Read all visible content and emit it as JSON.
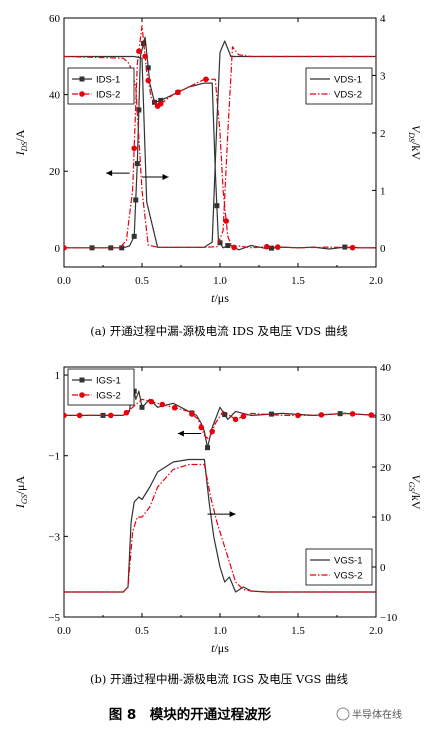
{
  "figure": {
    "title": "图 8　模块的开通过程波形",
    "watermark": "半导体在线",
    "caption_a": "(a)  开通过程中漏-源极电流  IDS 及电压  VDS 曲线",
    "caption_b": "(b)  开通过程中栅-源极电流  IGS 及电压  VGS  曲线"
  },
  "chart_data": [
    {
      "type": "line",
      "panel": "a",
      "xlabel": "t/μs",
      "ylabel_left": "IDS/A",
      "ylabel_right": "VDS/kV",
      "xlim": [
        0,
        2.0
      ],
      "ylim_left": [
        -5,
        60
      ],
      "ylim_right": [
        -0.333,
        4.0
      ],
      "xticks": [
        "0.0",
        "0.5",
        "1.0",
        "1.5",
        "2.0"
      ],
      "yticks_left": [
        "0",
        "20",
        "40",
        "60"
      ],
      "yticks_right": [
        "0",
        "1",
        "2",
        "3",
        "4"
      ],
      "legend_left": [
        "IDS-1",
        "IDS-2"
      ],
      "legend_right": [
        "VDS-1",
        "VDS-2"
      ],
      "colors": {
        "s1": "#333333",
        "s2": "#e8000b"
      },
      "series": [
        {
          "name": "IDS-1",
          "axis": "left",
          "style": "solid-square",
          "x": [
            0.0,
            0.2,
            0.38,
            0.42,
            0.45,
            0.47,
            0.49,
            0.52,
            0.55,
            0.58,
            0.62,
            0.7,
            0.8,
            0.9,
            0.95,
            0.97,
            0.99,
            1.02,
            1.06,
            1.12,
            1.2,
            1.3,
            1.4,
            1.5,
            1.6,
            1.7,
            1.8,
            1.9,
            2.0
          ],
          "y": [
            0,
            0,
            0,
            0.5,
            3,
            22,
            50,
            55,
            43,
            38,
            38.5,
            40,
            42,
            43,
            43,
            20,
            2,
            0,
            0.8,
            -0.5,
            0.6,
            -0.2,
            0.2,
            0,
            0.2,
            -0.3,
            0.2,
            0,
            0
          ],
          "markers_x": [
            0.18,
            0.3,
            0.37,
            0.45,
            0.46,
            0.47,
            0.48,
            0.51,
            0.54,
            0.58,
            0.62,
            0.73,
            0.98,
            1.0,
            1.05,
            1.33,
            1.8
          ]
        },
        {
          "name": "IDS-2",
          "axis": "left",
          "style": "dashdot-circle",
          "x": [
            0.0,
            0.2,
            0.36,
            0.4,
            0.44,
            0.47,
            0.5,
            0.53,
            0.56,
            0.6,
            0.7,
            0.8,
            0.9,
            0.97,
            1.0,
            1.02,
            1.05,
            1.08,
            1.12,
            1.2,
            1.3,
            1.5,
            1.7,
            1.9,
            2.0
          ],
          "y": [
            0,
            0,
            0,
            2,
            15,
            48,
            58,
            46,
            39,
            37,
            40,
            42,
            44,
            44,
            30,
            15,
            3,
            0,
            0.5,
            0,
            0.3,
            0,
            0.2,
            0,
            0
          ],
          "markers_x": [
            0.0,
            0.45,
            0.48,
            0.52,
            0.54,
            0.6,
            0.62,
            0.73,
            0.91,
            1.04,
            1.09,
            1.3,
            1.37,
            1.85
          ]
        },
        {
          "name": "VDS-1",
          "axis": "right",
          "style": "solid",
          "x": [
            0.0,
            0.38,
            0.45,
            0.5,
            0.53,
            0.6,
            0.9,
            0.95,
            0.98,
            1.0,
            1.03,
            1.07,
            1.2,
            1.5,
            2.0
          ],
          "y": [
            3.33,
            3.33,
            3.33,
            3.3,
            0.8,
            0.01,
            0.01,
            0.1,
            2.2,
            3.4,
            3.6,
            3.33,
            3.33,
            3.33,
            3.33
          ]
        },
        {
          "name": "VDS-2",
          "axis": "right",
          "style": "dashdot",
          "x": [
            0.0,
            0.38,
            0.42,
            0.46,
            0.5,
            0.54,
            0.6,
            0.9,
            0.98,
            1.02,
            1.05,
            1.08,
            1.12,
            1.2,
            1.5,
            2.0
          ],
          "y": [
            3.33,
            3.3,
            3.2,
            2.8,
            1.0,
            0.05,
            0.01,
            0.01,
            0.02,
            0.3,
            2.0,
            3.5,
            3.36,
            3.33,
            3.33,
            3.33
          ]
        }
      ]
    },
    {
      "type": "line",
      "panel": "b",
      "xlabel": "t/μs",
      "ylabel_left": "IGS/μA",
      "ylabel_right": "VGS/kV",
      "xlim": [
        0,
        2.0
      ],
      "ylim_left": [
        -5,
        1.2
      ],
      "ylim_right": [
        -10,
        40
      ],
      "xticks": [
        "0.0",
        "0.5",
        "1.0",
        "1.5",
        "2.0"
      ],
      "yticks_left": [
        "-5",
        "-3",
        "-1",
        "1"
      ],
      "yticks_right": [
        "-10",
        "0",
        "10",
        "20",
        "30",
        "40"
      ],
      "legend_left": [
        "IGS-1",
        "IGS-2"
      ],
      "legend_right": [
        "VGS-1",
        "VGS-2"
      ],
      "colors": {
        "s1": "#333333",
        "s2": "#e8000b"
      },
      "series": [
        {
          "name": "IGS-1",
          "axis": "left",
          "style": "solid-square",
          "x": [
            0.0,
            0.38,
            0.42,
            0.44,
            0.46,
            0.48,
            0.5,
            0.55,
            0.6,
            0.7,
            0.8,
            0.85,
            0.88,
            0.9,
            0.92,
            0.95,
            1.0,
            1.05,
            1.1,
            1.2,
            1.4,
            1.6,
            1.8,
            2.0
          ],
          "y": [
            0,
            0,
            0.1,
            0.8,
            0.4,
            0.6,
            0.2,
            0.4,
            0.2,
            0.3,
            0.1,
            0,
            -0.2,
            -0.4,
            -0.8,
            -0.3,
            0.2,
            -0.1,
            0.1,
            0,
            0.05,
            0,
            0.05,
            0
          ],
          "markers_x": [
            0.25,
            0.45,
            0.5,
            0.82,
            0.92,
            1.03,
            1.33,
            1.77
          ]
        },
        {
          "name": "IGS-2",
          "axis": "left",
          "style": "dashdot-circle",
          "x": [
            0.0,
            0.38,
            0.44,
            0.5,
            0.6,
            0.7,
            0.8,
            0.86,
            0.9,
            0.93,
            0.97,
            1.02,
            1.1,
            1.2,
            1.4,
            1.6,
            1.8,
            2.0
          ],
          "y": [
            0,
            0,
            0.2,
            0.4,
            0.3,
            0.2,
            0.1,
            -0.1,
            -0.5,
            -0.6,
            -0.2,
            0.1,
            -0.1,
            0.05,
            0,
            0,
            0.05,
            0
          ],
          "markers_x": [
            0.0,
            0.1,
            0.3,
            0.4,
            0.56,
            0.63,
            0.71,
            0.82,
            0.88,
            0.95,
            1.1,
            1.15,
            1.5,
            1.65,
            1.85,
            1.97
          ]
        },
        {
          "name": "VGS-1",
          "axis": "right",
          "style": "solid",
          "x": [
            0.0,
            0.38,
            0.41,
            0.43,
            0.45,
            0.48,
            0.5,
            0.55,
            0.6,
            0.7,
            0.8,
            0.9,
            0.93,
            0.96,
            1.0,
            1.03,
            1.06,
            1.1,
            1.15,
            1.2,
            1.3,
            1.5,
            2.0
          ],
          "y": [
            -5,
            -5,
            -4,
            9,
            13,
            14,
            13.5,
            16,
            19,
            21,
            21.5,
            21.5,
            13,
            6,
            0,
            -3,
            -2,
            -5,
            -4,
            -4.8,
            -5,
            -5,
            -5
          ]
        },
        {
          "name": "VGS-2",
          "axis": "right",
          "style": "dashdot",
          "x": [
            0.0,
            0.38,
            0.41,
            0.44,
            0.47,
            0.5,
            0.55,
            0.6,
            0.7,
            0.8,
            0.9,
            0.94,
            0.98,
            1.02,
            1.06,
            1.1,
            1.15,
            1.2,
            1.3,
            1.5,
            2.0
          ],
          "y": [
            -5,
            -5,
            -4,
            7,
            10,
            10,
            12,
            16,
            19.5,
            20.5,
            20.5,
            14,
            9,
            5,
            1,
            -3,
            -4.5,
            -4.8,
            -5,
            -5,
            -5
          ]
        }
      ]
    }
  ]
}
